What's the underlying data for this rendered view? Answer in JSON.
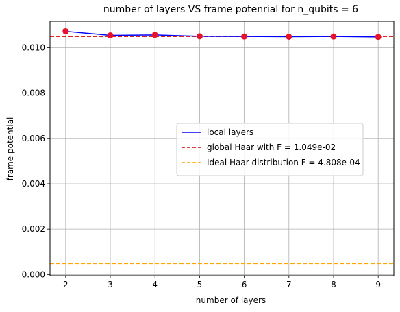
{
  "chart_data": {
    "type": "line",
    "title": "number of layers VS frame potenrial for n_qubits = 6",
    "xlabel": "number of layers",
    "ylabel": "frame potential",
    "xlim": [
      1.65,
      9.35
    ],
    "ylim": [
      -5e-05,
      0.01116
    ],
    "x_ticks": [
      2,
      3,
      4,
      5,
      6,
      7,
      8,
      9
    ],
    "y_ticks": [
      0.0,
      0.002,
      0.004,
      0.006,
      0.008,
      0.01
    ],
    "y_tick_labels": [
      "0.000",
      "0.002",
      "0.004",
      "0.006",
      "0.008",
      "0.010"
    ],
    "grid": true,
    "legend_position": "center-right",
    "series": [
      {
        "name": "local layers",
        "kind": "line+scatter",
        "x": [
          2,
          3,
          4,
          5,
          6,
          7,
          8,
          9
        ],
        "y": [
          0.01072,
          0.01054,
          0.01056,
          0.0105,
          0.01049,
          0.01048,
          0.01049,
          0.01047
        ],
        "color": "#0000ff",
        "marker_color": "#e8102a"
      }
    ],
    "reference_lines": [
      {
        "name": "global Haar with F = 1.049e-02",
        "y": 0.01049,
        "color": "#dd0000",
        "style": "dashed"
      },
      {
        "name": "Ideal Haar distribution F = 4.808e-04",
        "y": 0.0004808,
        "color": "#ffa500",
        "style": "dashed"
      }
    ]
  }
}
